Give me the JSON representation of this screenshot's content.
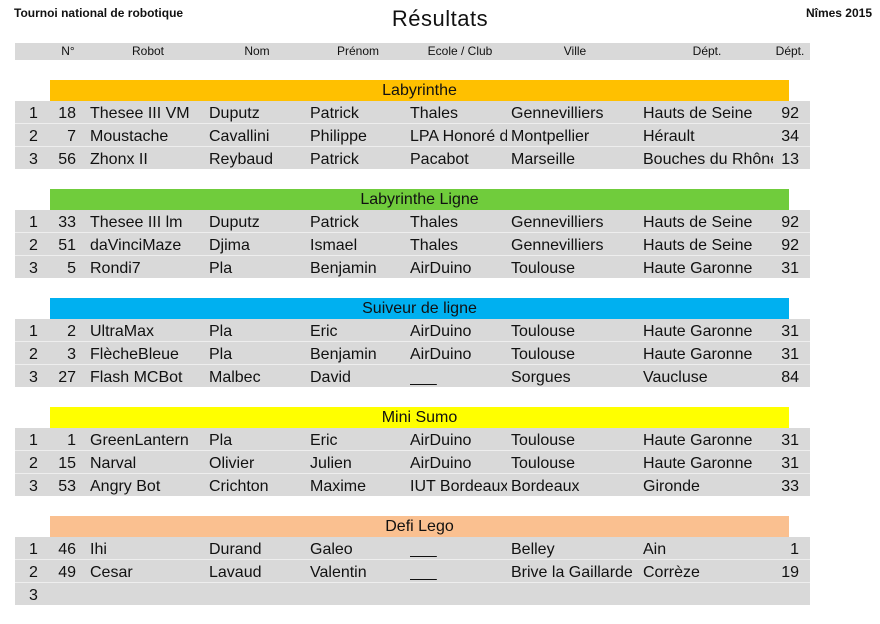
{
  "header": {
    "left": "Tournoi national de robotique",
    "title": "Résultats",
    "right": "Nîmes 2015"
  },
  "columns": [
    "N°",
    "Robot",
    "Nom",
    "Prénom",
    "Ecole / Club",
    "Ville",
    "Dépt.",
    "Dépt."
  ],
  "sections": [
    {
      "name": "Labyrinthe",
      "color": "#ffc000",
      "rows": [
        {
          "rank": "1",
          "num": "18",
          "robot": "Thesee III VM",
          "nom": "Duputz",
          "prenom": "Patrick",
          "ecole": "Thales",
          "ville": "Gennevilliers",
          "dept": "Hauts de Seine",
          "code": "92"
        },
        {
          "rank": "2",
          "num": "7",
          "robot": "Moustache",
          "nom": "Cavallini",
          "prenom": "Philippe",
          "ecole": "LPA Honoré de Balzac",
          "ville": "Montpellier",
          "dept": "Hérault",
          "code": "34"
        },
        {
          "rank": "3",
          "num": "56",
          "robot": "Zhonx II",
          "nom": "Reybaud",
          "prenom": "Patrick",
          "ecole": "Pacabot",
          "ville": "Marseille",
          "dept": "Bouches du Rhône",
          "code": "13"
        }
      ]
    },
    {
      "name": "Labyrinthe Ligne",
      "color": "#70cc3c",
      "rows": [
        {
          "rank": "1",
          "num": "33",
          "robot": "Thesee III lm",
          "nom": "Duputz",
          "prenom": "Patrick",
          "ecole": "Thales",
          "ville": "Gennevilliers",
          "dept": "Hauts de Seine",
          "code": "92"
        },
        {
          "rank": "2",
          "num": "51",
          "robot": "daVinciMaze",
          "nom": "Djima",
          "prenom": "Ismael",
          "ecole": "Thales",
          "ville": "Gennevilliers",
          "dept": "Hauts de Seine",
          "code": "92"
        },
        {
          "rank": "3",
          "num": "5",
          "robot": "Rondi7",
          "nom": "Pla",
          "prenom": "Benjamin",
          "ecole": "AirDuino",
          "ville": "Toulouse",
          "dept": "Haute Garonne",
          "code": "31"
        }
      ]
    },
    {
      "name": "Suiveur de ligne",
      "color": "#00b0f0",
      "rows": [
        {
          "rank": "1",
          "num": "2",
          "robot": "UltraMax",
          "nom": "Pla",
          "prenom": "Eric",
          "ecole": "AirDuino",
          "ville": "Toulouse",
          "dept": "Haute Garonne",
          "code": "31"
        },
        {
          "rank": "2",
          "num": "3",
          "robot": "FlècheBleue",
          "nom": "Pla",
          "prenom": "Benjamin",
          "ecole": "AirDuino",
          "ville": "Toulouse",
          "dept": "Haute Garonne",
          "code": "31"
        },
        {
          "rank": "3",
          "num": "27",
          "robot": "Flash MCBot",
          "nom": "Malbec",
          "prenom": "David",
          "ecole": "___",
          "ville": "Sorgues",
          "dept": "Vaucluse",
          "code": "84"
        }
      ]
    },
    {
      "name": "Mini Sumo",
      "color": "#ffff00",
      "rows": [
        {
          "rank": "1",
          "num": "1",
          "robot": "GreenLantern",
          "nom": "Pla",
          "prenom": "Eric",
          "ecole": "AirDuino",
          "ville": "Toulouse",
          "dept": "Haute Garonne",
          "code": "31"
        },
        {
          "rank": "2",
          "num": "15",
          "robot": "Narval",
          "nom": "Olivier",
          "prenom": "Julien",
          "ecole": "AirDuino",
          "ville": "Toulouse",
          "dept": "Haute Garonne",
          "code": "31"
        },
        {
          "rank": "3",
          "num": "53",
          "robot": "Angry Bot",
          "nom": "Crichton",
          "prenom": "Maxime",
          "ecole": "IUT Bordeaux",
          "ville": "Bordeaux",
          "dept": "Gironde",
          "code": "33"
        }
      ]
    },
    {
      "name": "Defi Lego",
      "color": "#fac090",
      "rows": [
        {
          "rank": "1",
          "num": "46",
          "robot": "Ihi",
          "nom": "Durand",
          "prenom": "Galeo",
          "ecole": "___",
          "ville": "Belley",
          "dept": "Ain",
          "code": "1"
        },
        {
          "rank": "2",
          "num": "49",
          "robot": "Cesar",
          "nom": "Lavaud",
          "prenom": "Valentin",
          "ecole": "___",
          "ville": "Brive la Gaillarde",
          "dept": "Corrèze",
          "code": "19"
        },
        {
          "rank": "3",
          "num": "",
          "robot": "",
          "nom": "",
          "prenom": "",
          "ecole": "",
          "ville": "",
          "dept": "",
          "code": ""
        }
      ]
    }
  ]
}
